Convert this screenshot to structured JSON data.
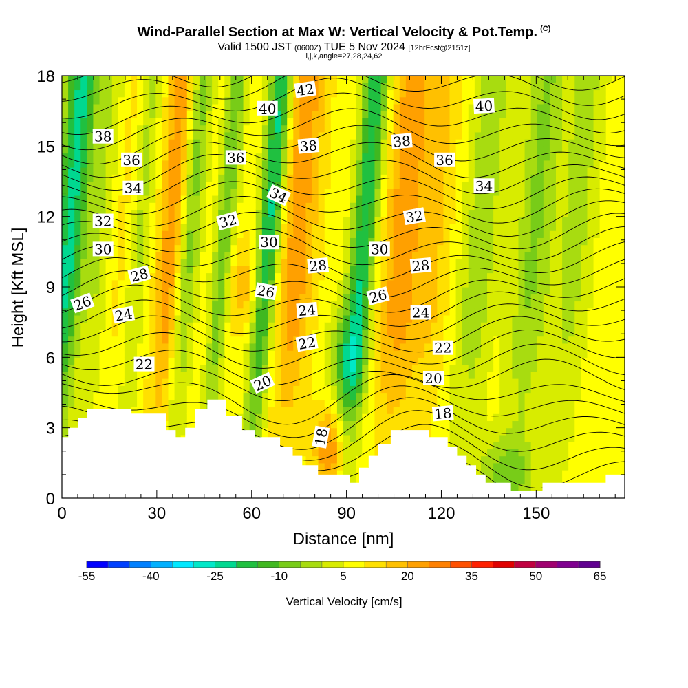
{
  "header": {
    "title": "Wind-Parallel Section at Max W: Vertical Velocity & Pot.Temp.",
    "copyright": "(C)",
    "valid_prefix": "Valid 1500 JST",
    "valid_utc": "(0600Z)",
    "valid_date": "TUE 5 Nov 2024",
    "forecast": "[12hrFcst@2151z]",
    "indices": "i,j,k,angle=27,28,24,62"
  },
  "chart_data": {
    "type": "heatmap",
    "xlabel": "Distance [nm]",
    "ylabel": "Height [Kft MSL]",
    "xlim": [
      0,
      178
    ],
    "ylim": [
      0,
      18
    ],
    "x_ticks": [
      "0",
      "30",
      "60",
      "90",
      "120",
      "150"
    ],
    "y_ticks": [
      "0",
      "3",
      "6",
      "9",
      "12",
      "15",
      "18"
    ],
    "colorbar": {
      "label": "Vertical Velocity [cm/s]",
      "tick_labels": [
        "-55",
        "-40",
        "-25",
        "-10",
        "5",
        "20",
        "35",
        "50",
        "65"
      ],
      "colors": [
        "#0000ff",
        "#0040ff",
        "#0080ff",
        "#00b0ff",
        "#00e8ff",
        "#00e8c8",
        "#00d890",
        "#20c040",
        "#40b820",
        "#78cc18",
        "#a8dc10",
        "#d8ec00",
        "#ffff00",
        "#ffe000",
        "#ffc000",
        "#ffa000",
        "#ff8000",
        "#ff5000",
        "#ff2000",
        "#e00000",
        "#c00040",
        "#a00070",
        "#800090",
        "#600090"
      ]
    },
    "contour_field": "Potential Temperature",
    "contour_labels": [
      {
        "text": "42",
        "x": 77.0,
        "y": 17.4,
        "rot": -8
      },
      {
        "text": "40",
        "x": 65.0,
        "y": 16.6,
        "rot": 0
      },
      {
        "text": "40",
        "x": 133.5,
        "y": 16.7,
        "rot": -3
      },
      {
        "text": "38",
        "x": 13.0,
        "y": 15.4,
        "rot": 0
      },
      {
        "text": "38",
        "x": 78.0,
        "y": 15.0,
        "rot": -5
      },
      {
        "text": "38",
        "x": 107.5,
        "y": 15.2,
        "rot": -5
      },
      {
        "text": "36",
        "x": 22.0,
        "y": 14.4,
        "rot": 0
      },
      {
        "text": "36",
        "x": 55.0,
        "y": 14.5,
        "rot": 0
      },
      {
        "text": "36",
        "x": 121.0,
        "y": 14.4,
        "rot": 0
      },
      {
        "text": "34",
        "x": 22.5,
        "y": 13.2,
        "rot": 0
      },
      {
        "text": "34",
        "x": 68.5,
        "y": 12.9,
        "rot": 25
      },
      {
        "text": "34",
        "x": 133.5,
        "y": 13.3,
        "rot": 0
      },
      {
        "text": "32",
        "x": 13.0,
        "y": 11.8,
        "rot": 0
      },
      {
        "text": "32",
        "x": 52.5,
        "y": 11.8,
        "rot": -15
      },
      {
        "text": "32",
        "x": 111.5,
        "y": 12.0,
        "rot": -10
      },
      {
        "text": "30",
        "x": 13.0,
        "y": 10.6,
        "rot": 0
      },
      {
        "text": "30",
        "x": 65.5,
        "y": 10.9,
        "rot": 0
      },
      {
        "text": "30",
        "x": 100.5,
        "y": 10.6,
        "rot": 0
      },
      {
        "text": "28",
        "x": 24.5,
        "y": 9.5,
        "rot": -15
      },
      {
        "text": "28",
        "x": 81.0,
        "y": 9.9,
        "rot": -5
      },
      {
        "text": "28",
        "x": 113.5,
        "y": 9.9,
        "rot": -5
      },
      {
        "text": "26",
        "x": 6.5,
        "y": 8.3,
        "rot": -20
      },
      {
        "text": "26",
        "x": 64.5,
        "y": 8.8,
        "rot": 10
      },
      {
        "text": "26",
        "x": 100.0,
        "y": 8.6,
        "rot": -15
      },
      {
        "text": "24",
        "x": 19.5,
        "y": 7.8,
        "rot": -10
      },
      {
        "text": "24",
        "x": 77.5,
        "y": 8.0,
        "rot": -5
      },
      {
        "text": "24",
        "x": 113.5,
        "y": 7.9,
        "rot": 0
      },
      {
        "text": "22",
        "x": 77.5,
        "y": 6.6,
        "rot": -10
      },
      {
        "text": "22",
        "x": 26.0,
        "y": 5.7,
        "rot": 0
      },
      {
        "text": "22",
        "x": 120.5,
        "y": 6.4,
        "rot": 0
      },
      {
        "text": "20",
        "x": 63.5,
        "y": 4.9,
        "rot": -25
      },
      {
        "text": "20",
        "x": 117.5,
        "y": 5.1,
        "rot": 0
      },
      {
        "text": "18",
        "x": 82.0,
        "y": 2.6,
        "rot": -80
      },
      {
        "text": "18",
        "x": 120.5,
        "y": 3.6,
        "rot": -5
      }
    ]
  }
}
